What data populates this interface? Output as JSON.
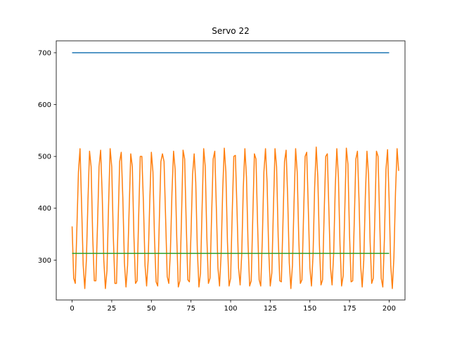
{
  "chart_data": {
    "type": "line",
    "title": "Servo 22",
    "xlabel": "",
    "ylabel": "",
    "xlim": [
      -10,
      210
    ],
    "ylim": [
      223,
      723
    ],
    "x_ticks": [
      0,
      25,
      50,
      75,
      100,
      125,
      150,
      175,
      200
    ],
    "x_tick_labels": [
      "0",
      "25",
      "50",
      "75",
      "100",
      "125",
      "150",
      "175",
      "200"
    ],
    "y_ticks": [
      300,
      400,
      500,
      600,
      700
    ],
    "y_tick_labels": [
      "300",
      "400",
      "500",
      "600",
      "700"
    ],
    "grid": false,
    "legend": "none",
    "series": [
      {
        "color": "#1f77b4",
        "x": [
          0,
          200
        ],
        "values": [
          700,
          700
        ]
      },
      {
        "color": "#ff7f0e",
        "x_start": 0,
        "x_step": 1,
        "values": [
          365,
          265,
          255,
          360,
          470,
          515,
          405,
          290,
          245,
          300,
          415,
          510,
          480,
          345,
          260,
          260,
          365,
          480,
          512,
          425,
          300,
          245,
          280,
          405,
          515,
          480,
          345,
          255,
          255,
          370,
          490,
          508,
          420,
          295,
          248,
          290,
          400,
          505,
          480,
          345,
          255,
          260,
          385,
          500,
          500,
          410,
          290,
          250,
          300,
          415,
          508,
          470,
          340,
          258,
          250,
          375,
          490,
          505,
          490,
          380,
          268,
          255,
          315,
          430,
          510,
          475,
          345,
          248,
          260,
          380,
          512,
          495,
          370,
          262,
          258,
          350,
          465,
          505,
          450,
          320,
          248,
          275,
          400,
          515,
          480,
          345,
          255,
          265,
          385,
          495,
          510,
          400,
          285,
          250,
          310,
          435,
          516,
          470,
          335,
          250,
          265,
          390,
          500,
          502,
          400,
          285,
          252,
          310,
          440,
          515,
          460,
          330,
          250,
          260,
          385,
          505,
          495,
          370,
          262,
          250,
          340,
          470,
          515,
          450,
          320,
          250,
          275,
          400,
          515,
          480,
          345,
          260,
          258,
          370,
          490,
          512,
          420,
          295,
          245,
          290,
          410,
          515,
          470,
          340,
          255,
          262,
          385,
          500,
          508,
          400,
          285,
          250,
          310,
          440,
          518,
          460,
          330,
          252,
          262,
          390,
          500,
          505,
          395,
          285,
          252,
          312,
          440,
          515,
          460,
          330,
          250,
          270,
          395,
          516,
          485,
          350,
          258,
          260,
          375,
          495,
          510,
          415,
          290,
          248,
          300,
          425,
          510,
          465,
          335,
          255,
          265,
          385,
          510,
          500,
          380,
          265,
          248,
          340,
          475,
          513,
          415,
          290,
          245,
          305,
          430,
          515,
          472
        ]
      },
      {
        "color": "#2ca02c",
        "x": [
          0,
          200
        ],
        "values": [
          313,
          313
        ]
      }
    ]
  }
}
